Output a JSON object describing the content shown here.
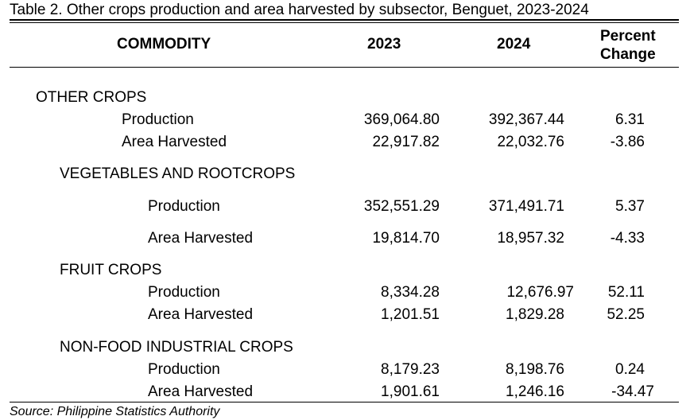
{
  "caption": "Table 2. Other crops production and area harvested by subsector, Benguet, 2023-2024",
  "headers": {
    "commodity": "COMMODITY",
    "y2023": "2023",
    "y2024": "2024",
    "pct_line1": "Percent",
    "pct_line2": "Change"
  },
  "sections": [
    {
      "title": "OTHER CROPS",
      "rows": [
        {
          "label": "Production",
          "v2023": "369,064.80",
          "v2024": "392,367.44",
          "pct": "6.31"
        },
        {
          "label": "Area Harvested",
          "v2023": "22,917.82",
          "v2024": "22,032.76",
          "pct": "-3.86"
        }
      ]
    },
    {
      "title": "VEGETABLES AND ROOTCROPS",
      "rows": [
        {
          "label": "Production",
          "v2023": "352,551.29",
          "v2024": "371,491.71",
          "pct": "5.37"
        },
        {
          "label": "Area Harvested",
          "v2023": "19,814.70",
          "v2024": "18,957.32",
          "pct": "-4.33"
        }
      ]
    },
    {
      "title": "FRUIT CROPS",
      "rows": [
        {
          "label": "Production",
          "v2023": "8,334.28",
          "v2024": "12,676.97",
          "pct": "52.11"
        },
        {
          "label": "Area Harvested",
          "v2023": "1,201.51",
          "v2024": "1,829.28",
          "pct": "52.25"
        }
      ]
    },
    {
      "title": "NON-FOOD INDUSTRIAL CROPS",
      "rows": [
        {
          "label": "Production",
          "v2023": "8,179.23",
          "v2024": "8,198.76",
          "pct": "0.24"
        },
        {
          "label": "Area Harvested",
          "v2023": "1,901.61",
          "v2024": "1,246.16",
          "pct": "-34.47"
        }
      ]
    }
  ],
  "source": "Source: Philippine Statistics Authority"
}
